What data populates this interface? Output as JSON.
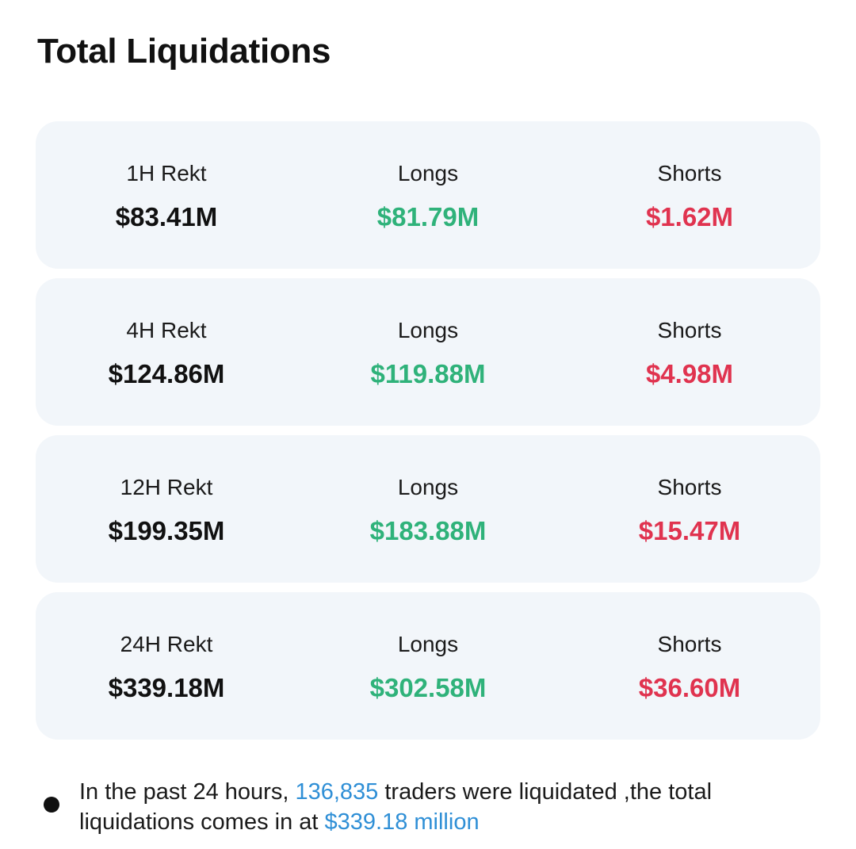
{
  "title": "Total Liquidations",
  "colors": {
    "long": "#2fb27a",
    "short": "#e0334f",
    "highlight": "#2f8fd6",
    "card_bg": "#f2f6fa"
  },
  "cards": [
    {
      "period_label": "1H Rekt",
      "total": "$83.41M",
      "longs_label": "Longs",
      "longs": "$81.79M",
      "shorts_label": "Shorts",
      "shorts": "$1.62M"
    },
    {
      "period_label": "4H Rekt",
      "total": "$124.86M",
      "longs_label": "Longs",
      "longs": "$119.88M",
      "shorts_label": "Shorts",
      "shorts": "$4.98M"
    },
    {
      "period_label": "12H Rekt",
      "total": "$199.35M",
      "longs_label": "Longs",
      "longs": "$183.88M",
      "shorts_label": "Shorts",
      "shorts": "$15.47M"
    },
    {
      "period_label": "24H Rekt",
      "total": "$339.18M",
      "longs_label": "Longs",
      "longs": "$302.58M",
      "shorts_label": "Shorts",
      "shorts": "$36.60M"
    }
  ],
  "summary": {
    "part1": "In the past 24 hours, ",
    "traders_count": "136,835",
    "part2": " traders were liquidated ,the total liquidations comes in at ",
    "total_amount": "$339.18 million"
  }
}
